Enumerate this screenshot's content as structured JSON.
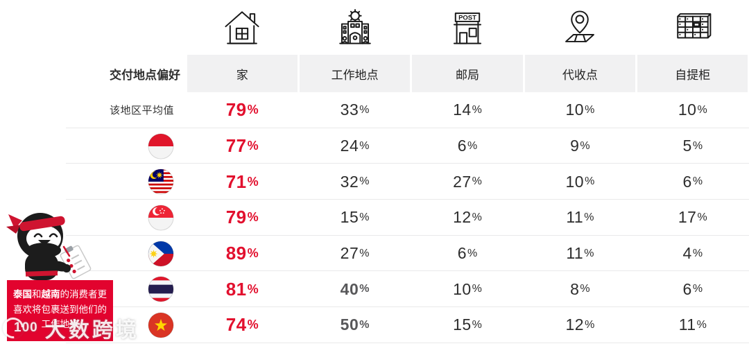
{
  "accent": "#E2102E",
  "ui": {
    "percent_sign": "%"
  },
  "header": {
    "row_label": "交付地点偏好",
    "columns": [
      {
        "label": "家",
        "icon": "house-icon"
      },
      {
        "label": "工作地点",
        "icon": "office-building-icon"
      },
      {
        "label": "邮局",
        "icon": "post-office-icon",
        "icon_text": "POST"
      },
      {
        "label": "代收点",
        "icon": "map-pin-icon"
      },
      {
        "label": "自提柜",
        "icon": "parcel-locker-icon"
      }
    ]
  },
  "chart_data": {
    "type": "table",
    "title": "交付地点偏好",
    "columns": [
      "家",
      "工作地点",
      "邮局",
      "代收点",
      "自提柜"
    ],
    "unit": "%",
    "rows": [
      {
        "name": "该地区平均值",
        "values": [
          79,
          33,
          14,
          10,
          10
        ]
      },
      {
        "flag": "indonesia",
        "values": [
          77,
          24,
          6,
          9,
          5
        ]
      },
      {
        "flag": "malaysia",
        "values": [
          71,
          32,
          27,
          10,
          6
        ]
      },
      {
        "flag": "singapore",
        "values": [
          79,
          15,
          12,
          11,
          17
        ]
      },
      {
        "flag": "philippines",
        "values": [
          89,
          27,
          6,
          11,
          4
        ]
      },
      {
        "flag": "thailand",
        "values": [
          81,
          40,
          10,
          8,
          6
        ],
        "bold_cols": [
          1
        ]
      },
      {
        "flag": "vietnam",
        "values": [
          74,
          50,
          15,
          12,
          11
        ],
        "bold_cols": [
          1
        ]
      }
    ],
    "highlight_column": 0,
    "highlight_color": "#E2102E"
  },
  "callout": {
    "parts": [
      {
        "t": "泰国",
        "b": true
      },
      {
        "t": "和",
        "b": false
      },
      {
        "t": "越南",
        "b": true
      },
      {
        "t": "的消费者更喜欢将包裹送到他们的工作地点",
        "b": false
      }
    ]
  },
  "watermark": {
    "logo": "100",
    "text": "大数跨境"
  }
}
